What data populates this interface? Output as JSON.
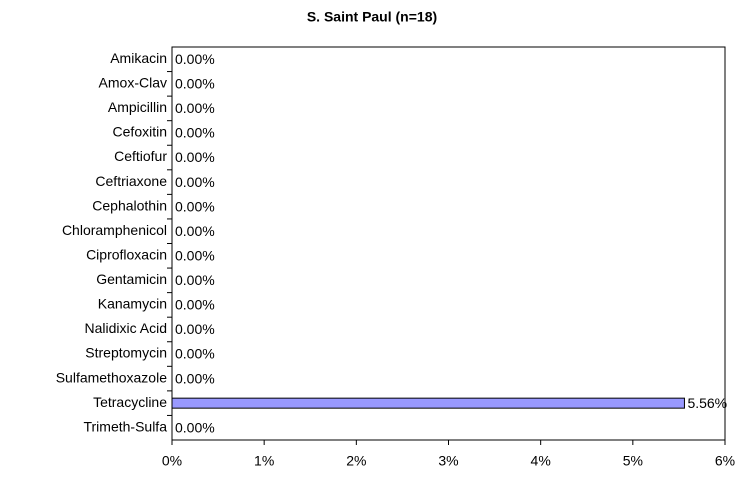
{
  "chart_data": {
    "type": "bar",
    "orientation": "horizontal",
    "title": "S. Saint Paul (n=18)",
    "categories": [
      "Amikacin",
      "Amox-Clav",
      "Ampicillin",
      "Cefoxitin",
      "Ceftiofur",
      "Ceftriaxone",
      "Cephalothin",
      "Chloramphenicol",
      "Ciprofloxacin",
      "Gentamicin",
      "Kanamycin",
      "Nalidixic Acid",
      "Streptomycin",
      "Sulfamethoxazole",
      "Tetracycline",
      "Trimeth-Sulfa"
    ],
    "values": [
      0,
      0,
      0,
      0,
      0,
      0,
      0,
      0,
      0,
      0,
      0,
      0,
      0,
      0,
      5.56,
      0
    ],
    "value_labels": [
      "0.00%",
      "0.00%",
      "0.00%",
      "0.00%",
      "0.00%",
      "0.00%",
      "0.00%",
      "0.00%",
      "0.00%",
      "0.00%",
      "0.00%",
      "0.00%",
      "0.00%",
      "0.00%",
      "5.56%",
      "0.00%"
    ],
    "color": "#9999ff",
    "xlim": [
      0,
      6
    ],
    "xticks": [
      {
        "value": 0,
        "label": "0%"
      },
      {
        "value": 1,
        "label": "1%"
      },
      {
        "value": 2,
        "label": "2%"
      },
      {
        "value": 3,
        "label": "3%"
      },
      {
        "value": 4,
        "label": "4%"
      },
      {
        "value": 5,
        "label": "5%"
      },
      {
        "value": 6,
        "label": "6%"
      }
    ],
    "grid": false
  }
}
